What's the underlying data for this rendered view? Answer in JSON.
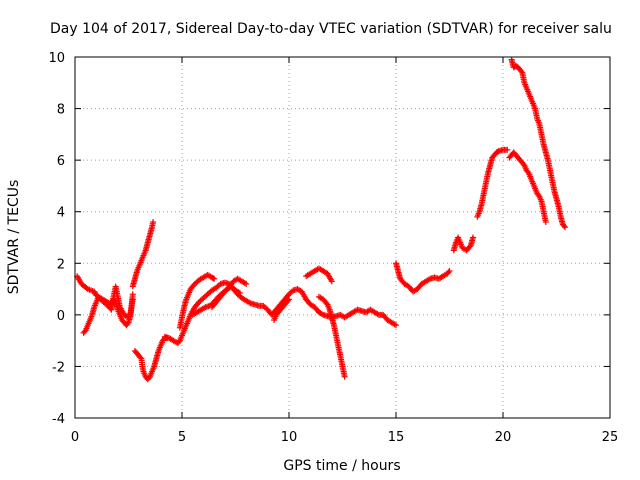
{
  "chart_data": {
    "type": "scatter",
    "title": "Day 104 of 2017, Sidereal Day-to-day VTEC variation (SDTVAR) for receiver salu",
    "xlabel": "GPS time / hours",
    "ylabel": "SDTVAR / TECUs",
    "xlim": [
      0,
      25
    ],
    "ylim": [
      -4,
      10
    ],
    "xticks": [
      0,
      5,
      10,
      15,
      20,
      25
    ],
    "yticks": [
      -4,
      -2,
      0,
      2,
      4,
      6,
      8,
      10
    ],
    "xtick_labels": [
      "0",
      "5",
      "10",
      "15",
      "20",
      "25"
    ],
    "ytick_labels": [
      "-4",
      "-2",
      "0",
      "2",
      "4",
      "6",
      "8",
      "10"
    ],
    "grid": true,
    "marker": "plus",
    "color": "#ff0000",
    "series": [
      {
        "segments": [
          [
            [
              0.1,
              1.5
            ],
            [
              0.3,
              1.2
            ],
            [
              0.6,
              1.0
            ],
            [
              0.9,
              0.9
            ],
            [
              1.0,
              0.75
            ],
            [
              1.2,
              0.6
            ],
            [
              1.4,
              0.45
            ],
            [
              1.6,
              0.3
            ],
            [
              1.7,
              0.2
            ],
            [
              1.8,
              0.7
            ],
            [
              1.9,
              1.1
            ],
            [
              2.0,
              0.7
            ],
            [
              2.1,
              0.3
            ],
            [
              2.3,
              0.0
            ],
            [
              2.5,
              -0.1
            ],
            [
              2.6,
              0.1
            ],
            [
              2.7,
              0.6
            ]
          ],
          [
            [
              0.4,
              -0.7
            ],
            [
              0.5,
              -0.6
            ],
            [
              0.6,
              -0.4
            ],
            [
              0.7,
              -0.2
            ],
            [
              0.8,
              0.0
            ],
            [
              0.9,
              0.3
            ],
            [
              1.0,
              0.5
            ],
            [
              1.1,
              0.7
            ],
            [
              1.3,
              0.6
            ],
            [
              1.5,
              0.5
            ],
            [
              1.7,
              0.4
            ],
            [
              1.8,
              0.6
            ],
            [
              1.9,
              0.5
            ],
            [
              2.0,
              0.2
            ],
            [
              2.2,
              -0.2
            ],
            [
              2.4,
              -0.4
            ],
            [
              2.5,
              -0.3
            ],
            [
              2.6,
              0.0
            ],
            [
              2.7,
              0.8
            ]
          ],
          [
            [
              2.7,
              1.1
            ],
            [
              2.8,
              1.4
            ],
            [
              2.9,
              1.7
            ],
            [
              3.0,
              1.9
            ],
            [
              3.1,
              2.1
            ],
            [
              3.2,
              2.3
            ],
            [
              3.3,
              2.5
            ],
            [
              3.4,
              2.8
            ],
            [
              3.5,
              3.1
            ],
            [
              3.6,
              3.4
            ],
            [
              3.65,
              3.6
            ]
          ],
          [
            [
              2.8,
              -1.4
            ],
            [
              2.9,
              -1.5
            ],
            [
              3.0,
              -1.6
            ],
            [
              3.1,
              -1.7
            ],
            [
              3.15,
              -2.0
            ],
            [
              3.2,
              -2.2
            ],
            [
              3.3,
              -2.4
            ],
            [
              3.4,
              -2.5
            ],
            [
              3.5,
              -2.4
            ],
            [
              3.6,
              -2.2
            ],
            [
              3.7,
              -2.0
            ],
            [
              3.8,
              -1.7
            ],
            [
              3.9,
              -1.4
            ],
            [
              4.0,
              -1.2
            ],
            [
              4.1,
              -1.0
            ],
            [
              4.2,
              -0.9
            ],
            [
              4.3,
              -0.9
            ]
          ],
          [
            [
              4.2,
              -0.85
            ],
            [
              4.4,
              -0.9
            ],
            [
              4.6,
              -1.0
            ],
            [
              4.8,
              -1.1
            ],
            [
              4.9,
              -1.0
            ],
            [
              5.0,
              -0.8
            ],
            [
              5.2,
              -0.4
            ],
            [
              5.4,
              0.0
            ],
            [
              5.6,
              0.3
            ],
            [
              5.8,
              0.5
            ],
            [
              6.0,
              0.65
            ],
            [
              6.2,
              0.8
            ],
            [
              6.4,
              0.95
            ],
            [
              6.6,
              1.05
            ],
            [
              6.8,
              1.2
            ],
            [
              7.0,
              1.25
            ],
            [
              7.2,
              1.2
            ],
            [
              7.4,
              1.0
            ],
            [
              7.6,
              0.8
            ],
            [
              7.8,
              0.65
            ],
            [
              8.0,
              0.55
            ],
            [
              8.2,
              0.45
            ],
            [
              8.4,
              0.4
            ],
            [
              8.6,
              0.35
            ],
            [
              8.8,
              0.35
            ],
            [
              9.0,
              0.2
            ],
            [
              9.2,
              0.0
            ],
            [
              9.4,
              0.2
            ],
            [
              9.6,
              0.4
            ],
            [
              9.8,
              0.6
            ],
            [
              10.0,
              0.8
            ],
            [
              10.2,
              0.95
            ],
            [
              10.4,
              1.0
            ],
            [
              10.6,
              0.9
            ],
            [
              10.8,
              0.6
            ],
            [
              11.0,
              0.4
            ],
            [
              11.2,
              0.3
            ],
            [
              11.4,
              0.1
            ],
            [
              11.6,
              0.0
            ],
            [
              11.8,
              -0.05
            ],
            [
              12.0,
              -0.1
            ],
            [
              12.2,
              -0.05
            ],
            [
              12.4,
              0.0
            ],
            [
              12.6,
              -0.1
            ],
            [
              12.8,
              0.0
            ],
            [
              13.0,
              0.1
            ],
            [
              13.2,
              0.2
            ],
            [
              13.4,
              0.15
            ],
            [
              13.6,
              0.1
            ],
            [
              13.8,
              0.2
            ],
            [
              14.0,
              0.1
            ],
            [
              14.2,
              0.0
            ],
            [
              14.4,
              0.0
            ],
            [
              14.6,
              -0.2
            ],
            [
              14.8,
              -0.3
            ],
            [
              15.0,
              -0.4
            ]
          ],
          [
            [
              4.9,
              -0.5
            ],
            [
              5.0,
              -0.1
            ],
            [
              5.1,
              0.3
            ],
            [
              5.2,
              0.6
            ],
            [
              5.3,
              0.8
            ],
            [
              5.4,
              1.0
            ],
            [
              5.6,
              1.2
            ],
            [
              5.8,
              1.35
            ],
            [
              6.0,
              1.45
            ],
            [
              6.2,
              1.55
            ],
            [
              6.4,
              1.45
            ],
            [
              6.5,
              1.4
            ]
          ],
          [
            [
              5.5,
              0.0
            ],
            [
              5.7,
              0.1
            ],
            [
              5.9,
              0.2
            ],
            [
              6.1,
              0.3
            ],
            [
              6.3,
              0.35
            ],
            [
              6.5,
              0.5
            ],
            [
              6.7,
              0.7
            ],
            [
              6.9,
              0.85
            ],
            [
              7.1,
              1.0
            ],
            [
              7.3,
              1.1
            ],
            [
              7.5,
              0.95
            ],
            [
              7.7,
              0.85
            ]
          ],
          [
            [
              6.4,
              0.3
            ],
            [
              6.6,
              0.5
            ],
            [
              6.8,
              0.7
            ],
            [
              7.0,
              0.9
            ],
            [
              7.2,
              1.05
            ],
            [
              7.4,
              1.3
            ],
            [
              7.6,
              1.4
            ],
            [
              7.8,
              1.3
            ],
            [
              8.0,
              1.2
            ]
          ],
          [
            [
              9.3,
              -0.2
            ],
            [
              9.4,
              0.0
            ],
            [
              9.6,
              0.2
            ],
            [
              9.8,
              0.4
            ],
            [
              10.0,
              0.6
            ]
          ],
          [
            [
              10.8,
              1.5
            ],
            [
              11.0,
              1.6
            ],
            [
              11.2,
              1.7
            ],
            [
              11.4,
              1.8
            ],
            [
              11.6,
              1.7
            ],
            [
              11.8,
              1.6
            ],
            [
              12.0,
              1.3
            ]
          ],
          [
            [
              11.4,
              0.7
            ],
            [
              11.6,
              0.6
            ],
            [
              11.8,
              0.4
            ],
            [
              11.9,
              0.2
            ],
            [
              12.0,
              -0.1
            ],
            [
              12.1,
              -0.4
            ],
            [
              12.2,
              -0.8
            ],
            [
              12.3,
              -1.2
            ],
            [
              12.4,
              -1.6
            ],
            [
              12.5,
              -2.0
            ],
            [
              12.6,
              -2.4
            ]
          ],
          [
            [
              15.0,
              2.0
            ],
            [
              15.1,
              1.7
            ],
            [
              15.2,
              1.4
            ],
            [
              15.4,
              1.2
            ],
            [
              15.6,
              1.1
            ],
            [
              15.8,
              0.9
            ],
            [
              16.0,
              1.0
            ],
            [
              16.2,
              1.2
            ],
            [
              16.4,
              1.3
            ],
            [
              16.6,
              1.4
            ],
            [
              16.8,
              1.45
            ],
            [
              17.0,
              1.4
            ],
            [
              17.2,
              1.5
            ],
            [
              17.4,
              1.6
            ],
            [
              17.5,
              1.7
            ]
          ],
          [
            [
              17.7,
              2.5
            ],
            [
              17.8,
              2.8
            ],
            [
              17.9,
              3.0
            ],
            [
              18.0,
              2.8
            ],
            [
              18.1,
              2.6
            ],
            [
              18.3,
              2.5
            ],
            [
              18.5,
              2.7
            ],
            [
              18.6,
              3.0
            ]
          ],
          [
            [
              18.8,
              3.8
            ],
            [
              18.9,
              4.0
            ],
            [
              19.0,
              4.3
            ],
            [
              19.1,
              4.7
            ],
            [
              19.2,
              5.1
            ],
            [
              19.3,
              5.5
            ],
            [
              19.4,
              5.8
            ],
            [
              19.5,
              6.1
            ],
            [
              19.6,
              6.2
            ],
            [
              19.7,
              6.3
            ],
            [
              19.8,
              6.35
            ],
            [
              20.0,
              6.4
            ],
            [
              20.2,
              6.4
            ]
          ],
          [
            [
              20.3,
              6.1
            ],
            [
              20.4,
              6.2
            ],
            [
              20.5,
              6.3
            ],
            [
              20.6,
              6.2
            ],
            [
              20.7,
              6.1
            ],
            [
              20.8,
              6.0
            ],
            [
              20.9,
              5.9
            ],
            [
              21.0,
              5.8
            ],
            [
              21.1,
              5.6
            ],
            [
              21.2,
              5.5
            ],
            [
              21.3,
              5.3
            ],
            [
              21.4,
              5.1
            ],
            [
              21.5,
              4.9
            ],
            [
              21.6,
              4.7
            ],
            [
              21.7,
              4.6
            ],
            [
              21.8,
              4.4
            ],
            [
              21.9,
              4.0
            ],
            [
              22.0,
              3.6
            ]
          ],
          [
            [
              20.4,
              9.9
            ],
            [
              20.5,
              9.6
            ],
            [
              20.6,
              9.65
            ],
            [
              20.7,
              9.6
            ],
            [
              20.8,
              9.5
            ],
            [
              20.9,
              9.4
            ],
            [
              21.0,
              9.0
            ],
            [
              21.1,
              8.8
            ],
            [
              21.2,
              8.6
            ],
            [
              21.3,
              8.4
            ],
            [
              21.4,
              8.2
            ],
            [
              21.5,
              8.0
            ],
            [
              21.6,
              7.6
            ],
            [
              21.7,
              7.4
            ],
            [
              21.8,
              7.0
            ],
            [
              21.9,
              6.6
            ],
            [
              22.0,
              6.3
            ],
            [
              22.1,
              6.0
            ],
            [
              22.2,
              5.6
            ],
            [
              22.3,
              5.2
            ],
            [
              22.4,
              4.8
            ],
            [
              22.5,
              4.5
            ],
            [
              22.6,
              4.2
            ],
            [
              22.7,
              3.8
            ],
            [
              22.8,
              3.5
            ],
            [
              22.9,
              3.4
            ]
          ]
        ]
      }
    ]
  }
}
